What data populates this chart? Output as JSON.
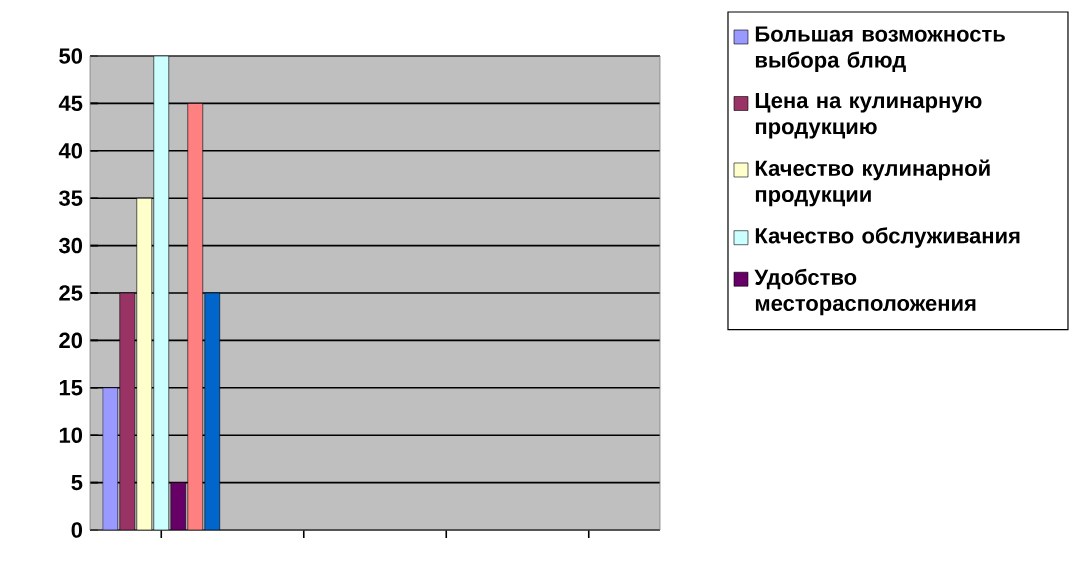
{
  "chart_data": {
    "type": "bar",
    "categories": [
      null,
      null,
      null,
      null
    ],
    "series": [
      {
        "name": "Большая возможность выбора блюд",
        "color": "#9999ff",
        "values": [
          15,
          null,
          null,
          null
        ]
      },
      {
        "name": "Цена на кулинарную продукцию",
        "color": "#993366",
        "values": [
          25,
          null,
          null,
          null
        ]
      },
      {
        "name": "Качество кулинарной продукции",
        "color": "#ffffcc",
        "values": [
          35,
          null,
          null,
          null
        ]
      },
      {
        "name": "Качество обслуживания",
        "color": "#ccffff",
        "values": [
          50,
          null,
          null,
          null
        ]
      },
      {
        "name": "Удобство месторасположения",
        "color": "#660066",
        "values": [
          5,
          null,
          null,
          null
        ]
      },
      {
        "color": "#ff8080",
        "values": [
          45,
          null,
          null,
          null
        ]
      },
      {
        "color": "#0066cc",
        "values": [
          25,
          null,
          null,
          null
        ]
      }
    ],
    "ylim": [
      0,
      50
    ],
    "yticks": [
      0,
      5,
      10,
      15,
      20,
      25,
      30,
      35,
      40,
      45,
      50
    ],
    "grid": "y",
    "legend": "right"
  }
}
